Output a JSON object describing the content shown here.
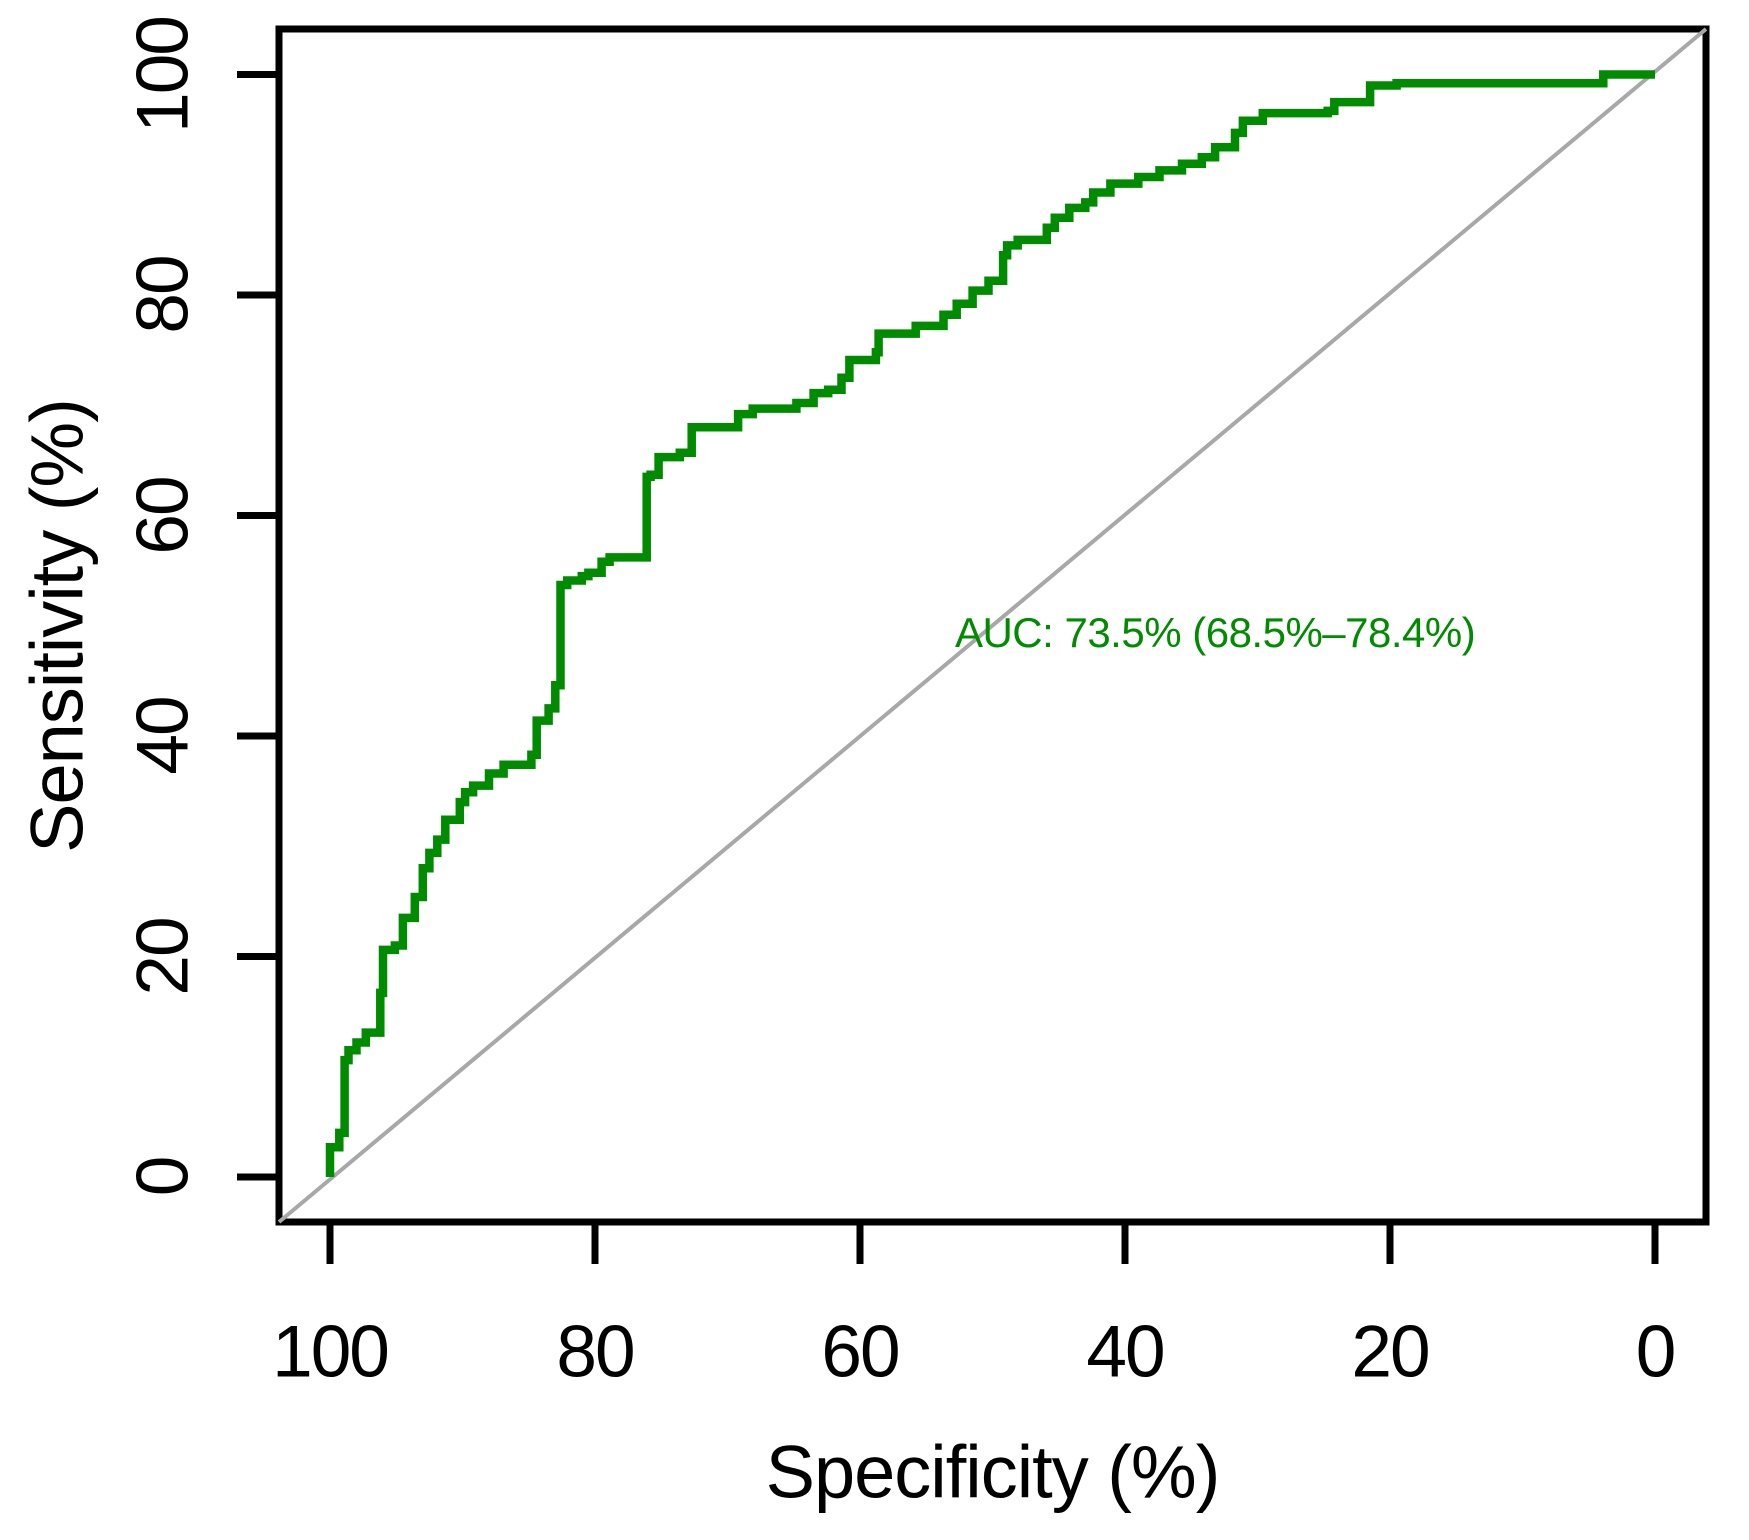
{
  "figure": {
    "background": "#ffffff"
  },
  "chart_data": {
    "type": "line",
    "subtype": "roc-curve-step",
    "title": "",
    "xlabel": "Specificity (%)",
    "ylabel": "Sensitivity (%)",
    "x_axis_reversed": true,
    "grid": false,
    "xlim": [
      104,
      -4
    ],
    "ylim": [
      -4,
      104
    ],
    "x_ticks": [
      "100",
      "80",
      "60",
      "40",
      "20",
      "0"
    ],
    "x_tick_values": [
      100,
      80,
      60,
      40,
      20,
      0
    ],
    "y_ticks": [
      "0",
      "20",
      "40",
      "60",
      "80",
      "100"
    ],
    "y_tick_values": [
      0,
      20,
      40,
      60,
      80,
      100
    ],
    "annotation": {
      "text": "AUC: 73.5% (68.5%–78.4%)",
      "color": "#008B00",
      "spec": 33.2,
      "sens": 49.3
    },
    "series": [
      {
        "name": "ROC curve",
        "color": "#008B00",
        "line_width": 8.5,
        "step": "vertical-first",
        "points_spec_sens": [
          [
            100,
            0
          ],
          [
            100,
            1.5
          ],
          [
            99.3,
            2.7
          ],
          [
            98.9,
            4
          ],
          [
            98.6,
            10.6
          ],
          [
            98,
            11.5
          ],
          [
            97.3,
            12.2
          ],
          [
            96.2,
            13.1
          ],
          [
            96,
            16.7
          ],
          [
            95.1,
            20.6
          ],
          [
            94.5,
            21
          ],
          [
            93.6,
            23.5
          ],
          [
            93,
            25.4
          ],
          [
            92.5,
            28
          ],
          [
            91.9,
            29.4
          ],
          [
            91.3,
            30.6
          ],
          [
            90.2,
            32.4
          ],
          [
            89.8,
            34
          ],
          [
            89.2,
            34.9
          ],
          [
            88,
            35.5
          ],
          [
            86.9,
            36.6
          ],
          [
            84.8,
            37.4
          ],
          [
            84.4,
            38.3
          ],
          [
            83.5,
            41.4
          ],
          [
            83,
            42.5
          ],
          [
            82.6,
            44.6
          ],
          [
            82.1,
            53.7
          ],
          [
            81,
            54.1
          ],
          [
            80.5,
            54.5
          ],
          [
            79.5,
            54.8
          ],
          [
            78.9,
            55.8
          ],
          [
            76.1,
            56.2
          ],
          [
            76.1,
            60.9
          ],
          [
            75.8,
            63.5
          ],
          [
            75.2,
            63.7
          ],
          [
            73.6,
            65.3
          ],
          [
            72.7,
            65.7
          ],
          [
            71.2,
            68
          ],
          [
            69.2,
            68
          ],
          [
            68.1,
            69.2
          ],
          [
            64.8,
            69.7
          ],
          [
            63.5,
            70.2
          ],
          [
            62.4,
            71.1
          ],
          [
            61.4,
            71.4
          ],
          [
            60.8,
            72.5
          ],
          [
            58.8,
            74.1
          ],
          [
            58.6,
            74.8
          ],
          [
            55.8,
            76.5
          ],
          [
            53.7,
            77.2
          ],
          [
            52.7,
            78.2
          ],
          [
            51.5,
            79.2
          ],
          [
            50.3,
            80.4
          ],
          [
            49.2,
            81.3
          ],
          [
            48.9,
            83.6
          ],
          [
            48.1,
            84.5
          ],
          [
            45.9,
            85
          ],
          [
            45.3,
            86.1
          ],
          [
            44.2,
            87
          ],
          [
            43,
            87.9
          ],
          [
            42.4,
            88.4
          ],
          [
            41.1,
            89.3
          ],
          [
            39,
            90.1
          ],
          [
            37.4,
            90.7
          ],
          [
            35.7,
            91.3
          ],
          [
            34.2,
            91.9
          ],
          [
            33.2,
            92.5
          ],
          [
            31.7,
            93.4
          ],
          [
            31.1,
            94.7
          ],
          [
            29.6,
            95.8
          ],
          [
            24.7,
            96.5
          ],
          [
            24.2,
            96.7
          ],
          [
            21.5,
            97.5
          ],
          [
            19.5,
            99
          ],
          [
            3.9,
            99.2
          ],
          [
            3.9,
            100
          ],
          [
            0,
            100
          ]
        ]
      }
    ],
    "reference_line": {
      "name": "chance diagonal",
      "color": "#A8A8A8",
      "line_width": 4,
      "from_spec_sens": [
        100,
        0
      ],
      "to_spec_sens": [
        0,
        100
      ]
    },
    "axis_color": "#000000",
    "box_line_width": 7,
    "tick_length": 42
  }
}
